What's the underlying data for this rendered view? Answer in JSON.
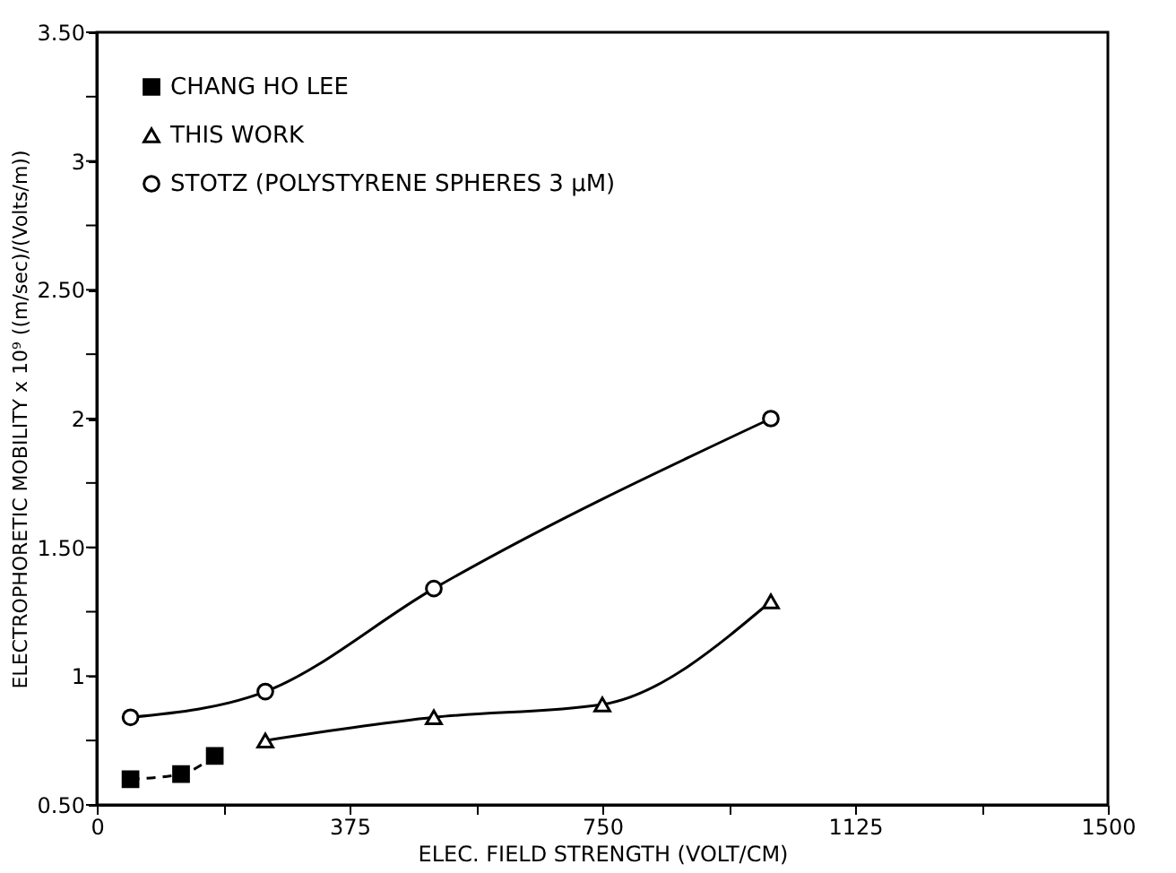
{
  "chart_data": {
    "type": "line",
    "xlabel": "ELEC. FIELD STRENGTH      (VOLT/CM)",
    "ylabel": "ELECTROPHORETIC MOBILITY x 10⁹   ((m/sec)/(Volts/m))",
    "xlim": [
      0,
      1500
    ],
    "ylim": [
      0.5,
      3.5
    ],
    "xticks": [
      0,
      {
        "value": 187.5,
        "label": null
      },
      375,
      {
        "value": 562.5,
        "label": null
      },
      750,
      {
        "value": 937.5,
        "label": null
      },
      1125,
      {
        "value": 1312.5,
        "label": null
      },
      1500
    ],
    "yticks": [
      {
        "value": 0.5,
        "label": "0.50"
      },
      {
        "value": 0.75,
        "label": null
      },
      1,
      {
        "value": 1.25,
        "label": null
      },
      {
        "value": 1.5,
        "label": "1.50"
      },
      {
        "value": 1.75,
        "label": null
      },
      2,
      {
        "value": 2.25,
        "label": null
      },
      {
        "value": 2.5,
        "label": "2.50"
      },
      {
        "value": 2.75,
        "label": null
      },
      3,
      {
        "value": 3.25,
        "label": null
      },
      {
        "value": 3.5,
        "label": "3.50"
      }
    ],
    "grid": false,
    "legend": "top left",
    "series": [
      {
        "name": "CHANG HO LEE",
        "color": "#000000",
        "marker": "square",
        "line_style": "dashed",
        "x": [
          50,
          125,
          175
        ],
        "values": [
          0.6,
          0.62,
          0.69
        ]
      },
      {
        "name": "THIS WORK",
        "color": "#000000",
        "marker": "triangle",
        "line_style": "solid",
        "x": [
          250,
          500,
          750,
          1000
        ],
        "values": [
          0.75,
          0.84,
          0.89,
          1.29
        ]
      },
      {
        "name": "STOTZ (POLYSTYRENE SPHERES 3 μM)",
        "color": "#000000",
        "marker": "circle",
        "line_style": "solid",
        "x": [
          50,
          250,
          500,
          1000
        ],
        "values": [
          0.84,
          0.94,
          1.34,
          2.0
        ]
      }
    ]
  }
}
